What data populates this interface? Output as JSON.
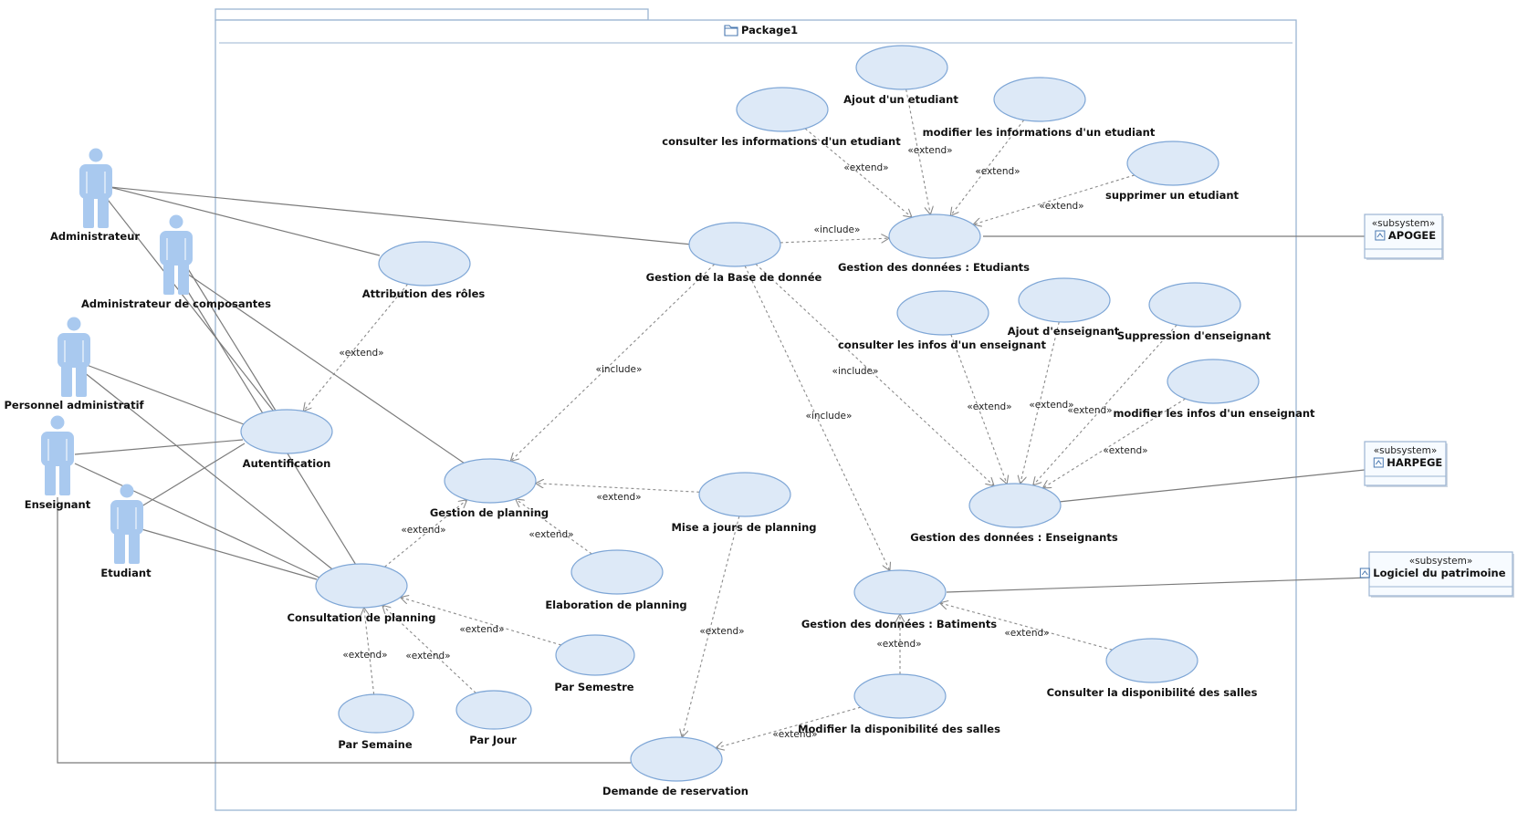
{
  "package": {
    "title": "Package1"
  },
  "actors": [
    {
      "id": "a-admin",
      "label": "Administrateur"
    },
    {
      "id": "a-admincomp",
      "label": "Administrateur de composantes"
    },
    {
      "id": "a-perso",
      "label": "Personnel administratif"
    },
    {
      "id": "a-ens",
      "label": "Enseignant"
    },
    {
      "id": "a-etu",
      "label": "Etudiant"
    }
  ],
  "use_cases": [
    {
      "id": "uc-attr",
      "label": "Attribution des rôles"
    },
    {
      "id": "uc-auth",
      "label": "Autentification"
    },
    {
      "id": "uc-bd",
      "label": "Gestion de la Base de donnée"
    },
    {
      "id": "uc-plan",
      "label": "Gestion de planning"
    },
    {
      "id": "uc-maj",
      "label": "Mise a jours de planning"
    },
    {
      "id": "uc-elab",
      "label": "Elaboration de planning"
    },
    {
      "id": "uc-cons",
      "label": "Consultation de planning"
    },
    {
      "id": "uc-sem",
      "label": "Par Semestre"
    },
    {
      "id": "uc-semaine",
      "label": "Par Semaine"
    },
    {
      "id": "uc-jour",
      "label": "Par Jour"
    },
    {
      "id": "uc-resa",
      "label": "Demande de reservation"
    },
    {
      "id": "uc-etud",
      "label": "Gestion des données : Etudiants"
    },
    {
      "id": "uc-cetu",
      "label": "consulter les informations d'un etudiant"
    },
    {
      "id": "uc-ajetu",
      "label": "Ajout d'un etudiant"
    },
    {
      "id": "uc-modetu",
      "label": "modifier les informations d'un etudiant"
    },
    {
      "id": "uc-supetu",
      "label": "supprimer un etudiant"
    },
    {
      "id": "uc-ensg",
      "label": "Gestion des données : Enseignants"
    },
    {
      "id": "uc-cens",
      "label": "consulter les infos d'un enseignant"
    },
    {
      "id": "uc-ajens",
      "label": "Ajout d'enseignant"
    },
    {
      "id": "uc-supens",
      "label": "Suppression d'enseignant"
    },
    {
      "id": "uc-modens",
      "label": "modifier les infos d'un enseignant"
    },
    {
      "id": "uc-bat",
      "label": "Gestion des données : Batiments"
    },
    {
      "id": "uc-moddisp",
      "label": "Modifier la disponibilité des salles"
    },
    {
      "id": "uc-condisp",
      "label": "Consulter la disponibilité des salles"
    }
  ],
  "subsystems": [
    {
      "id": "s-apogee",
      "stereotype": "«subsystem»",
      "name": "APOGEE"
    },
    {
      "id": "s-harpege",
      "stereotype": "«subsystem»",
      "name": "HARPEGE"
    },
    {
      "id": "s-patri",
      "stereotype": "«subsystem»",
      "name": "Logiciel du patrimoine"
    }
  ],
  "relations": [
    {
      "from": "uc-cetu",
      "to": "uc-etud",
      "kind": "«extend»"
    },
    {
      "from": "uc-ajetu",
      "to": "uc-etud",
      "kind": "«extend»"
    },
    {
      "from": "uc-modetu",
      "to": "uc-etud",
      "kind": "«extend»"
    },
    {
      "from": "uc-supetu",
      "to": "uc-etud",
      "kind": "«extend»"
    },
    {
      "from": "uc-bd",
      "to": "uc-etud",
      "kind": "«include»"
    },
    {
      "from": "uc-bd",
      "to": "uc-plan",
      "kind": "«include»"
    },
    {
      "from": "uc-bd",
      "to": "uc-ensg",
      "kind": "«include»"
    },
    {
      "from": "uc-bd",
      "to": "uc-bat",
      "kind": "«include»"
    },
    {
      "from": "uc-attr",
      "to": "uc-auth",
      "kind": "«extend»"
    },
    {
      "from": "uc-maj",
      "to": "uc-plan",
      "kind": "«extend»"
    },
    {
      "from": "uc-elab",
      "to": "uc-plan",
      "kind": "«extend»"
    },
    {
      "from": "uc-cons",
      "to": "uc-plan",
      "kind": "«extend»"
    },
    {
      "from": "uc-sem",
      "to": "uc-cons",
      "kind": "«extend»"
    },
    {
      "from": "uc-semaine",
      "to": "uc-cons",
      "kind": "«extend»"
    },
    {
      "from": "uc-jour",
      "to": "uc-cons",
      "kind": "«extend»"
    },
    {
      "from": "uc-maj",
      "to": "uc-resa",
      "kind": "«extend»"
    },
    {
      "from": "uc-moddisp",
      "to": "uc-resa",
      "kind": "«extend»"
    },
    {
      "from": "uc-moddisp",
      "to": "uc-bat",
      "kind": "«extend»"
    },
    {
      "from": "uc-condisp",
      "to": "uc-bat",
      "kind": "«extend»"
    },
    {
      "from": "uc-cens",
      "to": "uc-ensg",
      "kind": "«extend»"
    },
    {
      "from": "uc-ajens",
      "to": "uc-ensg",
      "kind": "«extend»"
    },
    {
      "from": "uc-supens",
      "to": "uc-ensg",
      "kind": "«extend»"
    },
    {
      "from": "uc-modens",
      "to": "uc-ensg",
      "kind": "«extend»"
    }
  ],
  "colors": {
    "use_case_fill": "#dde9f7",
    "use_case_stroke": "#7ea6d6",
    "actor": "#a9c9ef",
    "package_border": "#9bb5d2"
  }
}
